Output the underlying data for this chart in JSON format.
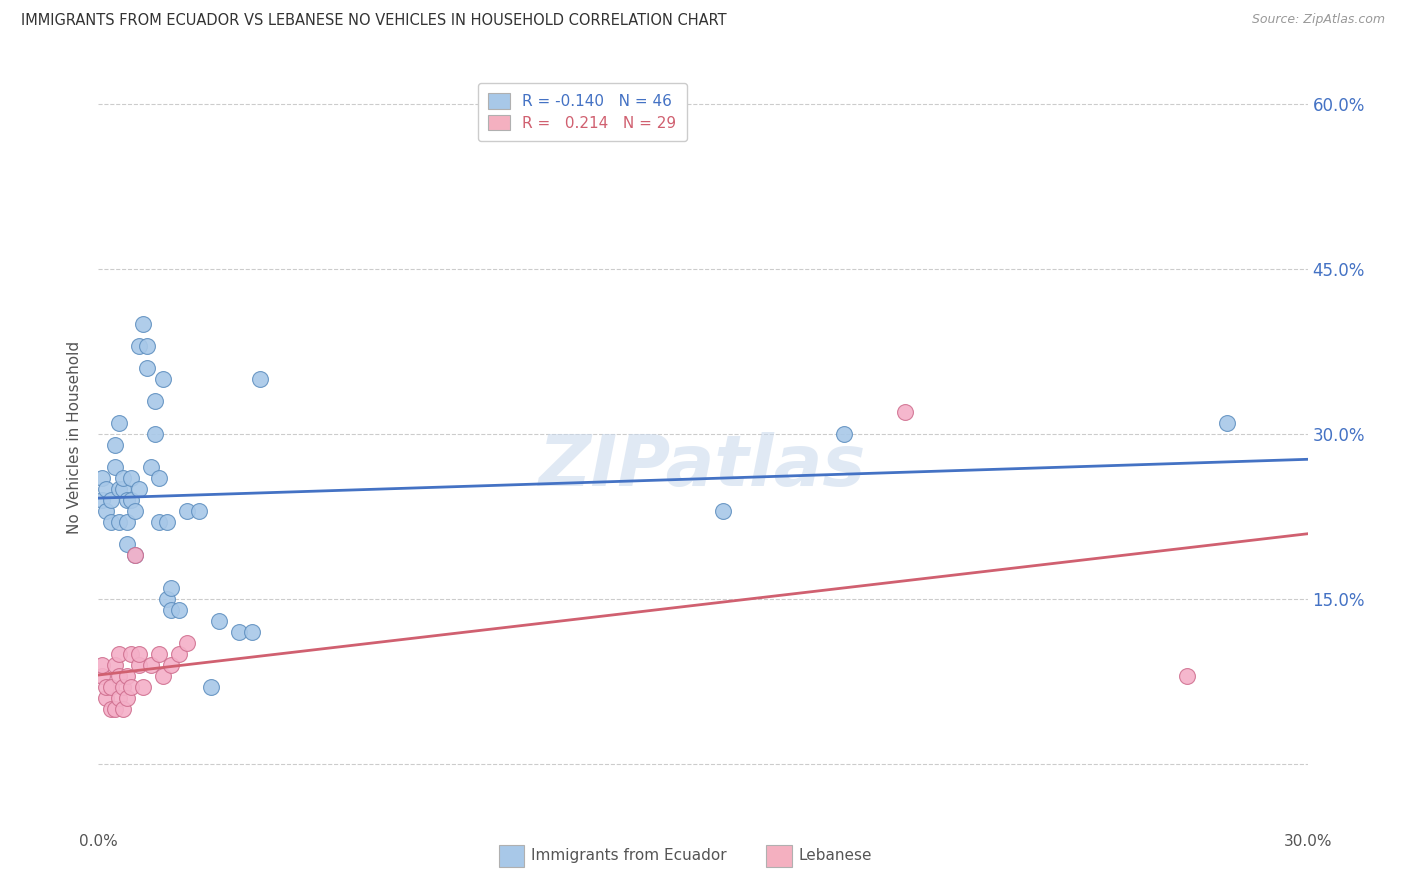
{
  "title": "IMMIGRANTS FROM ECUADOR VS LEBANESE NO VEHICLES IN HOUSEHOLD CORRELATION CHART",
  "source": "Source: ZipAtlas.com",
  "ylabel": "No Vehicles in Household",
  "xmin": 0.0,
  "xmax": 0.3,
  "ymin": -0.035,
  "ymax": 0.63,
  "legend1_label_r": "R = ",
  "legend1_val": "-0.140",
  "legend1_n": "  N = 46",
  "legend2_label_r": "R =  ",
  "legend2_val": "0.214",
  "legend2_n": "  N = 29",
  "legend1_color": "#a8c8e8",
  "legend2_color": "#f4b0c0",
  "line1_color": "#4472c4",
  "line2_color": "#d06070",
  "scatter1_color": "#a8c8e8",
  "scatter2_color": "#f4b0c8",
  "scatter1_edge": "#6090c0",
  "scatter2_edge": "#d07090",
  "watermark": "ZIPatlas",
  "ytick_vals": [
    0.0,
    0.15,
    0.3,
    0.45,
    0.6
  ],
  "ytick_labels_right": [
    "",
    "15.0%",
    "30.0%",
    "45.0%",
    "60.0%"
  ],
  "bottom_label1": "Immigrants from Ecuador",
  "bottom_label2": "Lebanese",
  "ecuador_x": [
    0.001,
    0.001,
    0.002,
    0.002,
    0.003,
    0.003,
    0.004,
    0.004,
    0.005,
    0.005,
    0.005,
    0.006,
    0.006,
    0.007,
    0.007,
    0.007,
    0.008,
    0.008,
    0.009,
    0.009,
    0.01,
    0.01,
    0.011,
    0.012,
    0.012,
    0.013,
    0.014,
    0.014,
    0.015,
    0.015,
    0.016,
    0.017,
    0.017,
    0.018,
    0.018,
    0.02,
    0.022,
    0.025,
    0.028,
    0.03,
    0.035,
    0.038,
    0.04,
    0.155,
    0.185,
    0.28
  ],
  "ecuador_y": [
    0.24,
    0.26,
    0.23,
    0.25,
    0.22,
    0.24,
    0.27,
    0.29,
    0.22,
    0.25,
    0.31,
    0.25,
    0.26,
    0.2,
    0.22,
    0.24,
    0.24,
    0.26,
    0.19,
    0.23,
    0.25,
    0.38,
    0.4,
    0.36,
    0.38,
    0.27,
    0.3,
    0.33,
    0.22,
    0.26,
    0.35,
    0.15,
    0.22,
    0.14,
    0.16,
    0.14,
    0.23,
    0.23,
    0.07,
    0.13,
    0.12,
    0.12,
    0.35,
    0.23,
    0.3,
    0.31
  ],
  "lebanese_x": [
    0.001,
    0.001,
    0.002,
    0.002,
    0.003,
    0.003,
    0.004,
    0.004,
    0.005,
    0.005,
    0.005,
    0.006,
    0.006,
    0.007,
    0.007,
    0.008,
    0.008,
    0.009,
    0.01,
    0.01,
    0.011,
    0.013,
    0.015,
    0.016,
    0.018,
    0.02,
    0.022,
    0.2,
    0.27
  ],
  "lebanese_y": [
    0.08,
    0.09,
    0.06,
    0.07,
    0.05,
    0.07,
    0.05,
    0.09,
    0.06,
    0.08,
    0.1,
    0.05,
    0.07,
    0.06,
    0.08,
    0.07,
    0.1,
    0.19,
    0.09,
    0.1,
    0.07,
    0.09,
    0.1,
    0.08,
    0.09,
    0.1,
    0.11,
    0.32,
    0.08
  ],
  "figsize": [
    14.06,
    8.92
  ],
  "dpi": 100
}
